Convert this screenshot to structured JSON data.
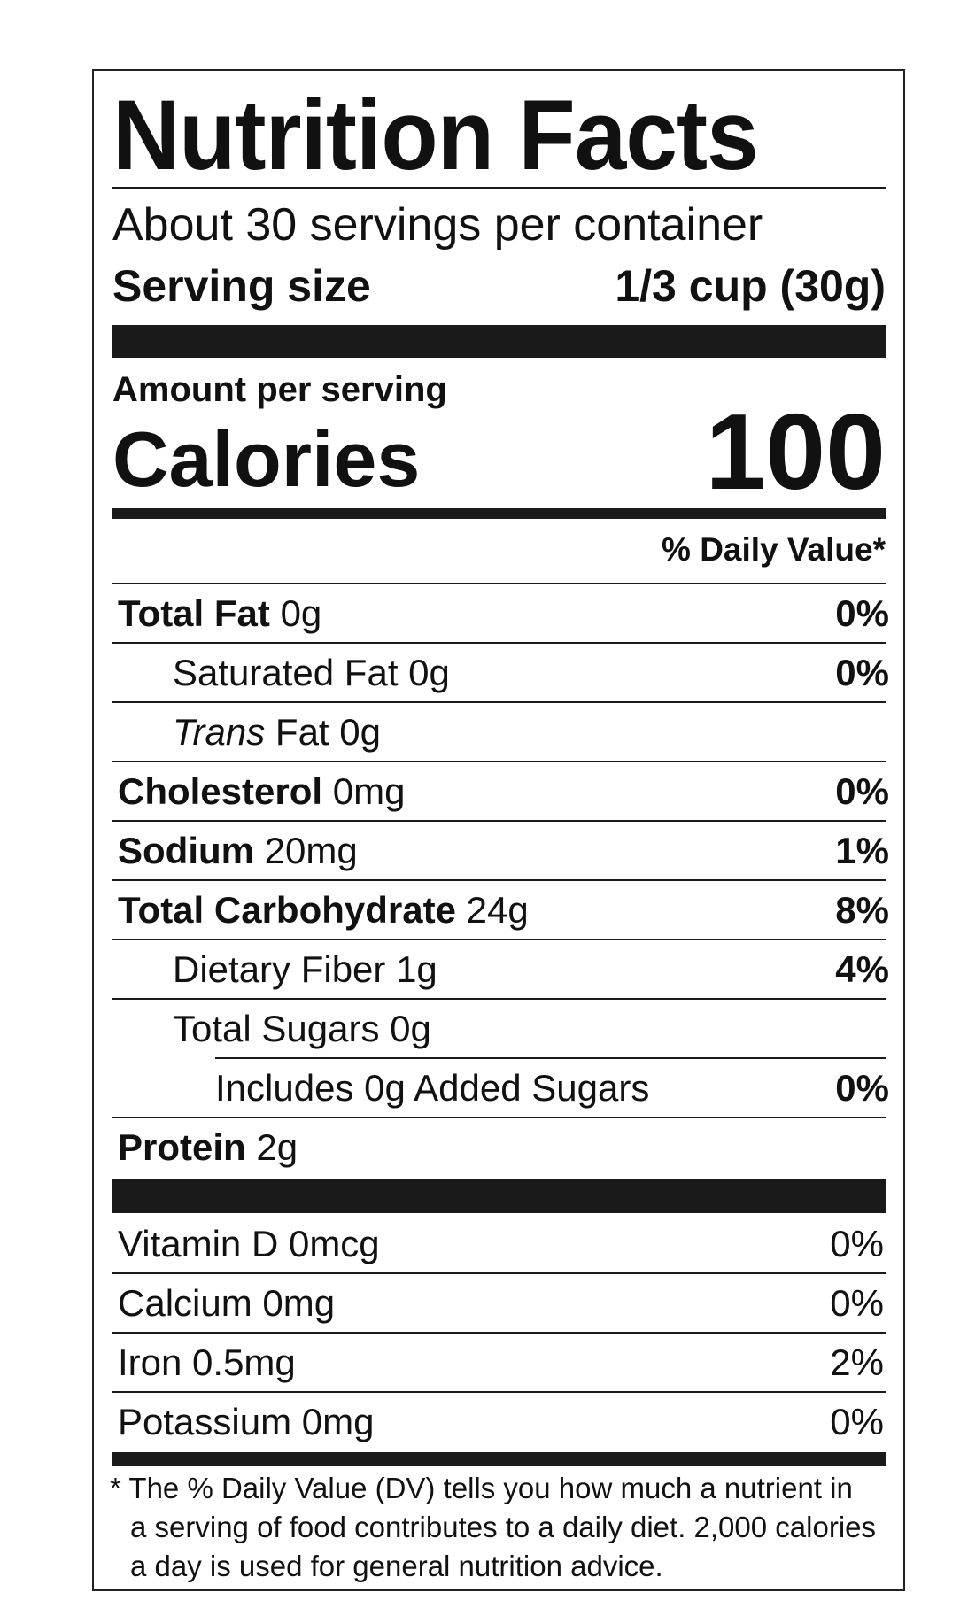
{
  "title": "Nutrition Facts",
  "servings_per_container": "About 30 servings per container",
  "serving_size_label": "Serving size",
  "serving_size_value": "1/3 cup (30g)",
  "amount_per_serving": "Amount per serving",
  "calories_label": "Calories",
  "calories_value": "100",
  "daily_value_header": "% Daily Value*",
  "nutrients": [
    {
      "name": "Total Fat",
      "amount": "0g",
      "dv": "0%",
      "bold": true,
      "indent": 0
    },
    {
      "name": "Saturated Fat",
      "amount": "0g",
      "dv": "0%",
      "bold": false,
      "indent": 1
    },
    {
      "name_italic": "Trans",
      "name": "Fat",
      "amount": "0g",
      "dv": "",
      "bold": false,
      "indent": 1
    },
    {
      "name": "Cholesterol",
      "amount": "0mg",
      "dv": "0%",
      "bold": true,
      "indent": 0
    },
    {
      "name": "Sodium",
      "amount": "20mg",
      "dv": "1%",
      "bold": true,
      "indent": 0
    },
    {
      "name": "Total Carbohydrate",
      "amount": "24g",
      "dv": "8%",
      "bold": true,
      "indent": 0
    },
    {
      "name": "Dietary Fiber",
      "amount": "1g",
      "dv": "4%",
      "bold": false,
      "indent": 1
    },
    {
      "name": "Total Sugars",
      "amount": "0g",
      "dv": "",
      "bold": false,
      "indent": 1
    },
    {
      "name": "Includes 0g Added Sugars",
      "amount": "",
      "dv": "0%",
      "bold": false,
      "indent": 2
    },
    {
      "name": "Protein",
      "amount": "2g",
      "dv": "",
      "bold": true,
      "indent": 0
    }
  ],
  "vitamins": [
    {
      "name": "Vitamin D 0mcg",
      "dv": "0%"
    },
    {
      "name": "Calcium 0mg",
      "dv": "0%"
    },
    {
      "name": "Iron 0.5mg",
      "dv": "2%"
    },
    {
      "name": "Potassium 0mg",
      "dv": "0%"
    }
  ],
  "footnote": [
    "* The % Daily Value (DV) tells you how much a nutrient in",
    "a serving of food contributes to a daily diet. 2,000 calories",
    "a day is used for general nutrition advice."
  ]
}
